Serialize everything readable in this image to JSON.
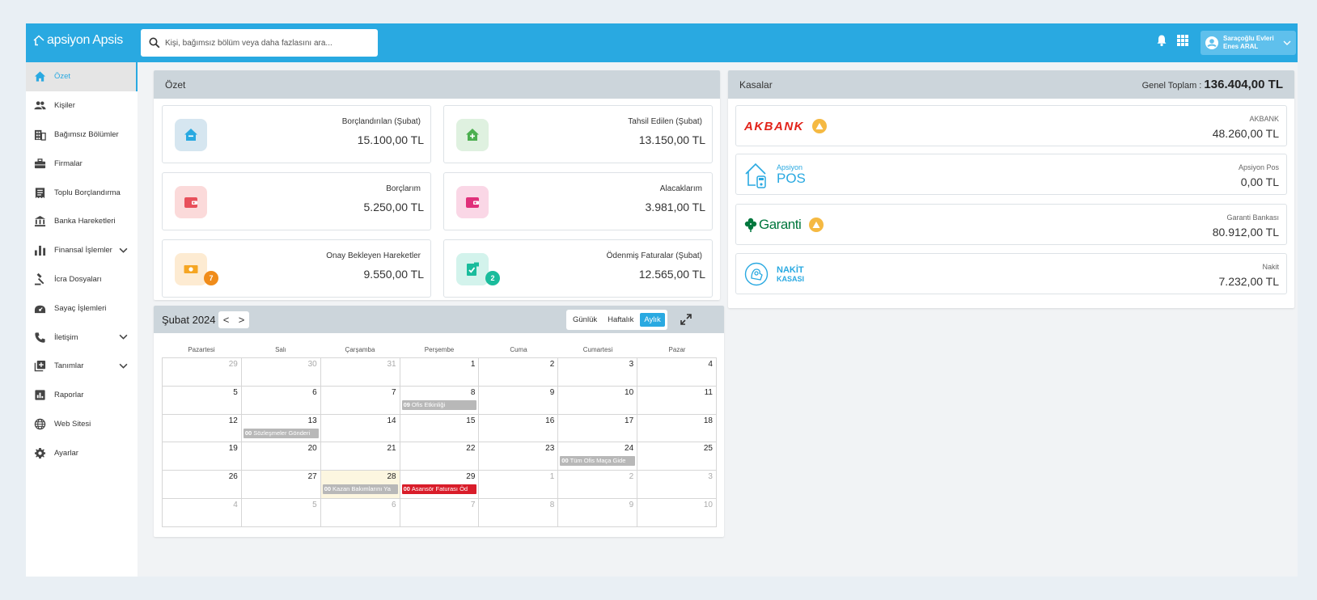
{
  "app": {
    "brand": "apsiyon Apsis"
  },
  "search": {
    "placeholder": "Kişi, bağımsız bölüm veya daha fazlasını ara..."
  },
  "user": {
    "site": "Saraçoğlu Evleri",
    "name": "Enes ARAL"
  },
  "sidebar": {
    "items": [
      {
        "label": "Özet",
        "icon": "home-icon"
      },
      {
        "label": "Kişiler",
        "icon": "people-icon"
      },
      {
        "label": "Bağımsız Bölümler",
        "icon": "building-icon"
      },
      {
        "label": "Firmalar",
        "icon": "briefcase-icon"
      },
      {
        "label": "Toplu Borçlandırma",
        "icon": "receipt-icon"
      },
      {
        "label": "Banka Hareketleri",
        "icon": "bank-icon"
      },
      {
        "label": "Finansal İşlemler",
        "icon": "bar-chart-icon"
      },
      {
        "label": "İcra Dosyaları",
        "icon": "gavel-icon"
      },
      {
        "label": "Sayaç İşlemleri",
        "icon": "meter-icon"
      },
      {
        "label": "İletişim",
        "icon": "phone-icon"
      },
      {
        "label": "Tanımlar",
        "icon": "add-box-icon"
      },
      {
        "label": "Raporlar",
        "icon": "report-icon"
      },
      {
        "label": "Web Sitesi",
        "icon": "globe-icon"
      },
      {
        "label": "Ayarlar",
        "icon": "gear-icon"
      }
    ]
  },
  "ozet": {
    "title": "Özet",
    "cards": [
      {
        "label": "Borçlandırılan (Şubat)",
        "value": "15.100,00 TL",
        "icon": "house-minus-icon",
        "color": "#29a9e1",
        "bg": "#d6e6f0"
      },
      {
        "label": "Tahsil Edilen (Şubat)",
        "value": "13.150,00 TL",
        "icon": "house-plus-icon",
        "color": "#4caf50",
        "bg": "#dff1e0"
      },
      {
        "label": "Borçlarım",
        "value": "5.250,00 TL",
        "icon": "wallet-icon",
        "color": "#e8505b",
        "bg": "#fbdada"
      },
      {
        "label": "Alacaklarım",
        "value": "3.981,00 TL",
        "icon": "wallet-icon",
        "color": "#e0307a",
        "bg": "#fad7e6"
      },
      {
        "label": "Onay Bekleyen Hareketler",
        "value": "9.550,00 TL",
        "icon": "cash-icon",
        "color": "#f5a623",
        "bg": "#fdebd2",
        "badge": "7",
        "badge_color": "#f08c1a"
      },
      {
        "label": "Ödenmiş Faturalar (Şubat)",
        "value": "12.565,00 TL",
        "icon": "invoice-check-icon",
        "color": "#1abc9c",
        "bg": "#d3f3ec",
        "badge": "2",
        "badge_color": "#1abc9c"
      }
    ]
  },
  "kasalar": {
    "title": "Kasalar",
    "total_label": "Genel Toplam :",
    "total_value": "136.404,00 TL",
    "items": [
      {
        "name": "AKBANK",
        "value": "48.260,00 TL",
        "logo_text": "AKBANK",
        "warning": true
      },
      {
        "name": "Apsiyon Pos",
        "value": "0,00 TL",
        "logo_text_small": "Apsiyon",
        "logo_text": "POS",
        "warning": false
      },
      {
        "name": "Garanti Bankası",
        "value": "80.912,00 TL",
        "logo_text": "Garanti",
        "warning": true
      },
      {
        "name": "Nakit",
        "value": "7.232,00 TL",
        "logo_text": "NAKİT",
        "logo_text_small": "KASASI",
        "warning": false
      }
    ]
  },
  "calendar": {
    "title": "Şubat 2024",
    "prev": "<",
    "next": ">",
    "views": [
      "Günlük",
      "Haftalık",
      "Aylık"
    ],
    "active_view": "Aylık",
    "weekdays": [
      "Pazartesi",
      "Salı",
      "Çarşamba",
      "Perşembe",
      "Cuma",
      "Cumartesi",
      "Pazar"
    ],
    "weeks": [
      [
        {
          "d": "29",
          "o": true
        },
        {
          "d": "30",
          "o": true
        },
        {
          "d": "31",
          "o": true
        },
        {
          "d": "1"
        },
        {
          "d": "2"
        },
        {
          "d": "3"
        },
        {
          "d": "4"
        }
      ],
      [
        {
          "d": "5"
        },
        {
          "d": "6"
        },
        {
          "d": "7"
        },
        {
          "d": "8",
          "ev": {
            "time": "09",
            "title": "Ofis Etkinliği"
          }
        },
        {
          "d": "9"
        },
        {
          "d": "10"
        },
        {
          "d": "11"
        }
      ],
      [
        {
          "d": "12"
        },
        {
          "d": "13",
          "ev": {
            "time": "00",
            "title": "Sözleşmeler Gönderi"
          }
        },
        {
          "d": "14"
        },
        {
          "d": "15"
        },
        {
          "d": "16"
        },
        {
          "d": "17"
        },
        {
          "d": "18"
        }
      ],
      [
        {
          "d": "19"
        },
        {
          "d": "20"
        },
        {
          "d": "21"
        },
        {
          "d": "22"
        },
        {
          "d": "23"
        },
        {
          "d": "24",
          "ev": {
            "time": "00",
            "title": "Tüm Ofis Maça Gide"
          }
        },
        {
          "d": "25"
        }
      ],
      [
        {
          "d": "26"
        },
        {
          "d": "27"
        },
        {
          "d": "28",
          "today": true,
          "ev": {
            "time": "00",
            "title": "Kazan Bakımlarını Ya"
          }
        },
        {
          "d": "29",
          "ev": {
            "time": "00",
            "title": "Asansör Faturası Öd",
            "red": true
          }
        },
        {
          "d": "1",
          "o": true
        },
        {
          "d": "2",
          "o": true
        },
        {
          "d": "3",
          "o": true
        }
      ],
      [
        {
          "d": "4",
          "o": true
        },
        {
          "d": "5",
          "o": true
        },
        {
          "d": "6",
          "o": true
        },
        {
          "d": "7",
          "o": true
        },
        {
          "d": "8",
          "o": true
        },
        {
          "d": "9",
          "o": true
        },
        {
          "d": "10",
          "o": true
        }
      ]
    ]
  }
}
